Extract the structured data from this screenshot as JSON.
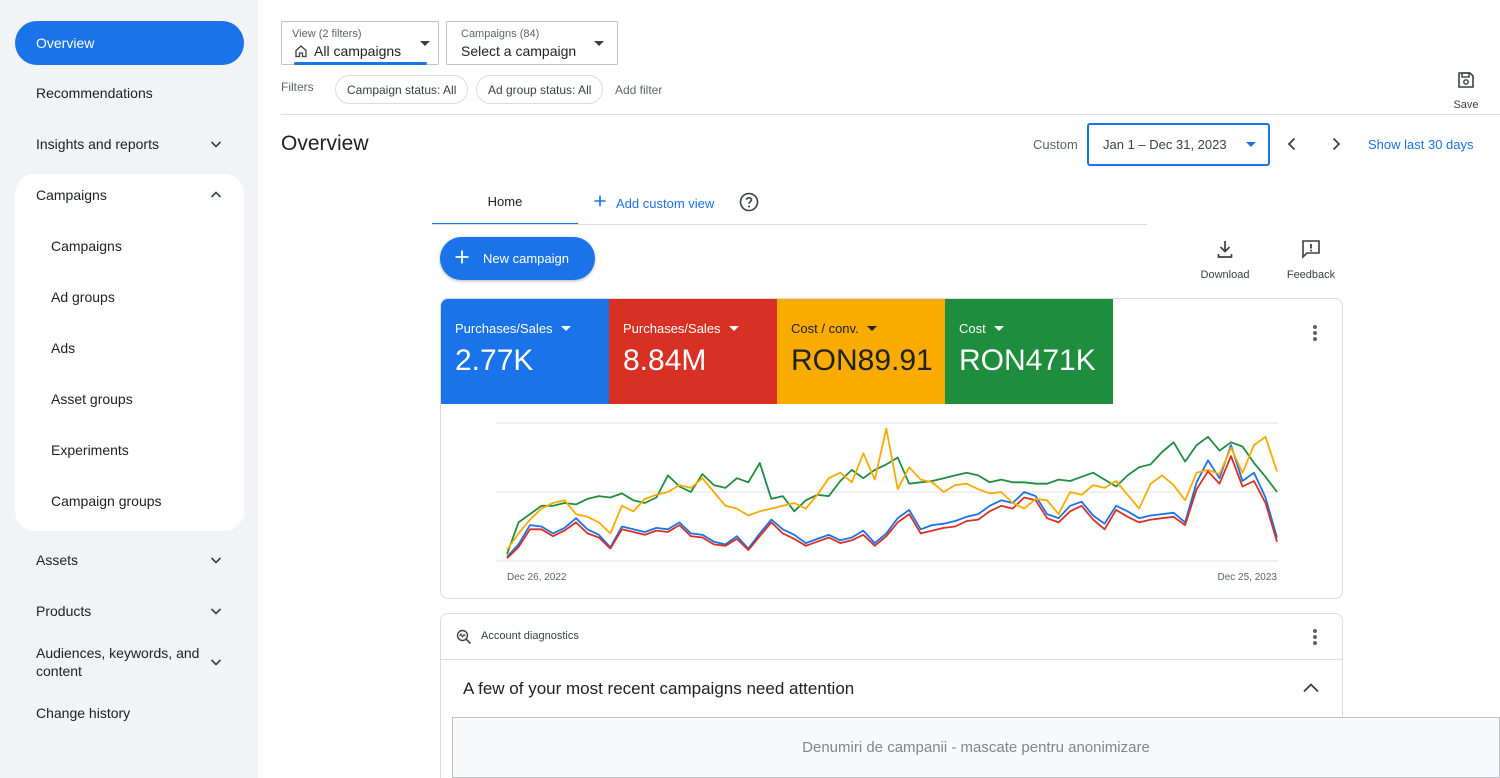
{
  "sidebar": {
    "overview": "Overview",
    "recommendations": "Recommendations",
    "insights": "Insights and reports",
    "campaigns_group": "Campaigns",
    "campaigns_sub": [
      "Campaigns",
      "Ad groups",
      "Ads",
      "Asset groups",
      "Experiments",
      "Campaign groups"
    ],
    "assets": "Assets",
    "products": "Products",
    "audiences_line1": "Audiences, keywords, and",
    "audiences_line2": "content",
    "change_history": "Change history"
  },
  "topbar": {
    "view_label": "View (2 filters)",
    "view_value": "All campaigns",
    "campaigns_label": "Campaigns (84)",
    "campaigns_value": "Select a campaign",
    "filters_label": "Filters",
    "chip_campaign_status": "Campaign status: All",
    "chip_adgroup_status": "Ad group status: All",
    "add_filter": "Add filter",
    "save": "Save"
  },
  "header": {
    "title": "Overview",
    "custom_label": "Custom",
    "date_range": "Jan 1 – Dec 31, 2023",
    "show_last": "Show last 30 days"
  },
  "tabs": {
    "home": "Home",
    "add_custom_view": "Add custom view"
  },
  "actions": {
    "new_campaign": "New campaign",
    "download": "Download",
    "feedback": "Feedback"
  },
  "metrics": [
    {
      "label": "Purchases/Sales",
      "value": "2.77K",
      "color": "#1a73e8"
    },
    {
      "label": "Purchases/Sales",
      "value": "8.84M",
      "color": "#d93025"
    },
    {
      "label": "Cost / conv.",
      "value": "RON89.91",
      "color": "#f9ab00"
    },
    {
      "label": "Cost",
      "value": "RON471K",
      "color": "#1e8e3e"
    }
  ],
  "chart_data": {
    "type": "line",
    "x_start_label": "Dec 26, 2022",
    "x_end_label": "Dec 25, 2023",
    "series": [
      {
        "color": "#1e8e3e",
        "values": [
          5,
          28,
          34,
          40,
          40,
          42,
          41,
          45,
          47,
          46,
          49,
          44,
          42,
          46,
          62,
          54,
          50,
          63,
          55,
          53,
          60,
          57,
          71,
          45,
          47,
          36,
          44,
          48,
          47,
          58,
          66,
          60,
          66,
          70,
          75,
          56,
          57,
          58,
          60,
          62,
          64,
          62,
          57,
          59,
          57,
          57,
          56,
          56,
          59,
          58,
          61,
          64,
          59,
          54,
          62,
          68,
          70,
          79,
          86,
          72,
          84,
          90,
          80,
          86,
          83,
          71,
          61,
          50
        ]
      },
      {
        "color": "#1a73e8",
        "values": [
          3,
          12,
          26,
          25,
          20,
          24,
          31,
          23,
          19,
          10,
          25,
          23,
          21,
          24,
          23,
          28,
          20,
          19,
          14,
          12,
          18,
          9,
          20,
          30,
          23,
          19,
          13,
          16,
          19,
          15,
          17,
          22,
          13,
          20,
          31,
          37,
          23,
          26,
          27,
          29,
          32,
          34,
          40,
          44,
          42,
          50,
          47,
          34,
          31,
          40,
          43,
          33,
          27,
          40,
          36,
          31,
          33,
          34,
          35,
          28,
          57,
          73,
          60,
          84,
          58,
          64,
          46,
          17
        ]
      },
      {
        "color": "#d93025",
        "values": [
          2,
          10,
          23,
          23,
          18,
          22,
          28,
          20,
          17,
          9,
          23,
          21,
          19,
          22,
          21,
          26,
          18,
          17,
          12,
          11,
          16,
          8,
          18,
          28,
          20,
          16,
          11,
          14,
          17,
          13,
          15,
          19,
          11,
          18,
          28,
          34,
          20,
          22,
          24,
          25,
          29,
          30,
          36,
          40,
          38,
          46,
          44,
          31,
          28,
          36,
          40,
          30,
          23,
          37,
          32,
          28,
          30,
          31,
          32,
          26,
          52,
          65,
          56,
          76,
          54,
          58,
          42,
          14
        ]
      },
      {
        "color": "#f9ab00",
        "values": [
          8,
          20,
          30,
          38,
          42,
          44,
          34,
          32,
          28,
          20,
          40,
          36,
          45,
          48,
          50,
          55,
          53,
          60,
          50,
          40,
          38,
          33,
          36,
          38,
          40,
          42,
          38,
          48,
          60,
          64,
          57,
          78,
          59,
          96,
          52,
          68,
          59,
          57,
          50,
          55,
          56,
          52,
          49,
          50,
          42,
          38,
          45,
          44,
          34,
          50,
          48,
          55,
          53,
          58,
          48,
          38,
          56,
          62,
          55,
          44,
          64,
          66,
          63,
          82,
          64,
          84,
          90,
          65
        ]
      }
    ]
  },
  "diagnostics": {
    "label": "Account diagnostics",
    "heading": "A few of your most recent campaigns need attention",
    "masked_note": "Denumiri de campanii - mascate pentru anonimizare"
  }
}
